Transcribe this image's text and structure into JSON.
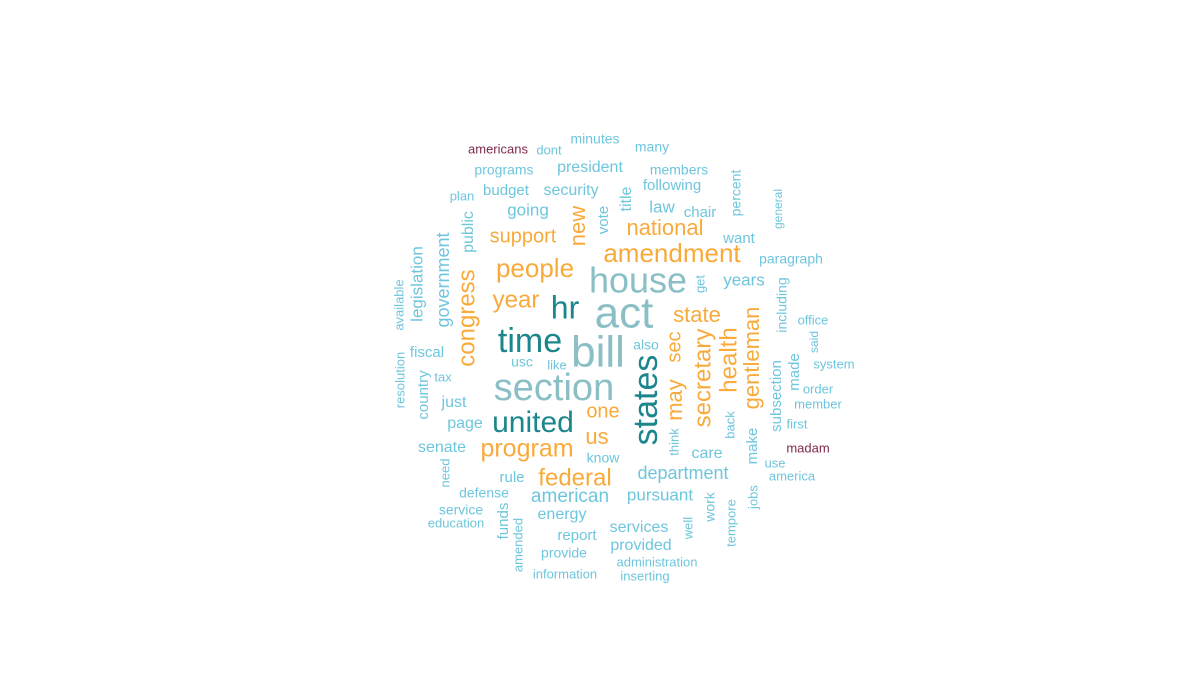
{
  "palette": {
    "dark_teal": "#1b868b",
    "mid_teal": "#8abfc6",
    "light_blue": "#6ec6dd",
    "orange": "#f8aa3a",
    "maroon": "#7d2a4e"
  },
  "words": [
    {
      "text": "act",
      "color": "mid_teal"
    },
    {
      "text": "bill",
      "color": "mid_teal"
    },
    {
      "text": "section",
      "color": "mid_teal"
    },
    {
      "text": "house",
      "color": "mid_teal"
    },
    {
      "text": "states",
      "color": "dark_teal"
    },
    {
      "text": "time",
      "color": "dark_teal"
    },
    {
      "text": "hr",
      "color": "dark_teal"
    },
    {
      "text": "united",
      "color": "dark_teal"
    },
    {
      "text": "amendment",
      "color": "orange"
    },
    {
      "text": "people",
      "color": "orange"
    },
    {
      "text": "program",
      "color": "orange"
    },
    {
      "text": "federal",
      "color": "orange"
    },
    {
      "text": "congress",
      "color": "orange"
    },
    {
      "text": "secretary",
      "color": "orange"
    },
    {
      "text": "health",
      "color": "orange"
    },
    {
      "text": "gentleman",
      "color": "orange"
    },
    {
      "text": "year",
      "color": "orange"
    },
    {
      "text": "national",
      "color": "orange"
    },
    {
      "text": "state",
      "color": "orange"
    },
    {
      "text": "support",
      "color": "orange"
    },
    {
      "text": "new",
      "color": "orange"
    },
    {
      "text": "may",
      "color": "orange"
    },
    {
      "text": "sec",
      "color": "orange"
    },
    {
      "text": "us",
      "color": "orange"
    },
    {
      "text": "one",
      "color": "orange"
    },
    {
      "text": "american",
      "color": "light_blue"
    },
    {
      "text": "department",
      "color": "light_blue"
    },
    {
      "text": "government",
      "color": "light_blue"
    },
    {
      "text": "legislation",
      "color": "light_blue"
    },
    {
      "text": "pursuant",
      "color": "light_blue"
    },
    {
      "text": "years",
      "color": "light_blue"
    },
    {
      "text": "energy",
      "color": "light_blue"
    },
    {
      "text": "services",
      "color": "light_blue"
    },
    {
      "text": "provided",
      "color": "light_blue"
    },
    {
      "text": "security",
      "color": "light_blue"
    },
    {
      "text": "president",
      "color": "light_blue"
    },
    {
      "text": "budget",
      "color": "light_blue"
    },
    {
      "text": "going",
      "color": "light_blue"
    },
    {
      "text": "law",
      "color": "light_blue"
    },
    {
      "text": "chair",
      "color": "light_blue"
    },
    {
      "text": "title",
      "color": "light_blue"
    },
    {
      "text": "vote",
      "color": "light_blue"
    },
    {
      "text": "following",
      "color": "light_blue"
    },
    {
      "text": "members",
      "color": "light_blue"
    },
    {
      "text": "programs",
      "color": "light_blue"
    },
    {
      "text": "public",
      "color": "light_blue"
    },
    {
      "text": "fiscal",
      "color": "light_blue"
    },
    {
      "text": "country",
      "color": "light_blue"
    },
    {
      "text": "just",
      "color": "light_blue"
    },
    {
      "text": "page",
      "color": "light_blue"
    },
    {
      "text": "senate",
      "color": "light_blue"
    },
    {
      "text": "rule",
      "color": "light_blue"
    },
    {
      "text": "defense",
      "color": "light_blue"
    },
    {
      "text": "funds",
      "color": "light_blue"
    },
    {
      "text": "report",
      "color": "light_blue"
    },
    {
      "text": "provide",
      "color": "light_blue"
    },
    {
      "text": "care",
      "color": "light_blue"
    },
    {
      "text": "make",
      "color": "light_blue"
    },
    {
      "text": "subsection",
      "color": "light_blue"
    },
    {
      "text": "made",
      "color": "light_blue"
    },
    {
      "text": "including",
      "color": "light_blue"
    },
    {
      "text": "paragraph",
      "color": "light_blue"
    },
    {
      "text": "want",
      "color": "light_blue"
    },
    {
      "text": "percent",
      "color": "light_blue"
    },
    {
      "text": "work",
      "color": "light_blue"
    },
    {
      "text": "also",
      "color": "light_blue"
    },
    {
      "text": "usc",
      "color": "light_blue"
    },
    {
      "text": "like",
      "color": "light_blue"
    },
    {
      "text": "know",
      "color": "light_blue"
    },
    {
      "text": "think",
      "color": "light_blue"
    },
    {
      "text": "get",
      "color": "light_blue"
    },
    {
      "text": "back",
      "color": "light_blue"
    },
    {
      "text": "well",
      "color": "light_blue"
    },
    {
      "text": "tempore",
      "color": "light_blue"
    },
    {
      "text": "jobs",
      "color": "light_blue"
    },
    {
      "text": "use",
      "color": "light_blue"
    },
    {
      "text": "america",
      "color": "light_blue"
    },
    {
      "text": "first",
      "color": "light_blue"
    },
    {
      "text": "member",
      "color": "light_blue"
    },
    {
      "text": "order",
      "color": "light_blue"
    },
    {
      "text": "system",
      "color": "light_blue"
    },
    {
      "text": "said",
      "color": "light_blue"
    },
    {
      "text": "office",
      "color": "light_blue"
    },
    {
      "text": "general",
      "color": "light_blue"
    },
    {
      "text": "minutes",
      "color": "light_blue"
    },
    {
      "text": "many",
      "color": "light_blue"
    },
    {
      "text": "dont",
      "color": "light_blue"
    },
    {
      "text": "plan",
      "color": "light_blue"
    },
    {
      "text": "resolution",
      "color": "light_blue"
    },
    {
      "text": "available",
      "color": "light_blue"
    },
    {
      "text": "tax",
      "color": "light_blue"
    },
    {
      "text": "need",
      "color": "light_blue"
    },
    {
      "text": "service",
      "color": "light_blue"
    },
    {
      "text": "education",
      "color": "light_blue"
    },
    {
      "text": "amended",
      "color": "light_blue"
    },
    {
      "text": "information",
      "color": "light_blue"
    },
    {
      "text": "administration",
      "color": "light_blue"
    },
    {
      "text": "inserting",
      "color": "light_blue"
    },
    {
      "text": "americans",
      "color": "maroon"
    },
    {
      "text": "madam",
      "color": "maroon"
    }
  ]
}
